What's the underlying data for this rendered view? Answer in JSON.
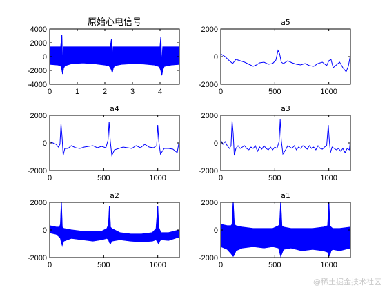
{
  "figure": {
    "watermark": "@稀土掘金技术社区"
  },
  "colors": {
    "line": "#0000ff",
    "axes": "#000000",
    "background": "#ffffff"
  },
  "chart_data": [
    {
      "id": "original",
      "type": "line",
      "title": "原始心电信号",
      "xlim": [
        0,
        4.7
      ],
      "ylim": [
        -4000,
        4000
      ],
      "xticks": [
        0,
        1,
        2,
        3,
        4
      ],
      "yticks": [
        -4000,
        -2000,
        0,
        2000,
        4000
      ],
      "grid": false,
      "series": [
        {
          "band": {
            "upper": 1400,
            "lower": -1300
          },
          "x": [
            0.0,
            0.3,
            0.4,
            0.44,
            0.47,
            0.5,
            0.55,
            0.8,
            1.2,
            1.6,
            2.0,
            2.15,
            2.2,
            2.24,
            2.27,
            2.3,
            2.35,
            2.6,
            3.0,
            3.4,
            3.8,
            3.95,
            4.0,
            4.03,
            4.06,
            4.1,
            4.15,
            4.4,
            4.7
          ],
          "upper": [
            1400,
            1400,
            1400,
            3100,
            -1700,
            1400,
            1400,
            1400,
            1400,
            1400,
            1400,
            1400,
            1400,
            2500,
            -900,
            1400,
            1400,
            1400,
            1400,
            1400,
            1400,
            1400,
            1400,
            2900,
            -1500,
            1400,
            1400,
            1400,
            1400
          ],
          "lower": [
            -1100,
            -1200,
            -1300,
            -1800,
            -2500,
            -1700,
            -1300,
            -1000,
            -900,
            -1000,
            -1200,
            -1300,
            -1600,
            -1900,
            -2300,
            -1700,
            -1300,
            -1100,
            -1000,
            -1050,
            -1200,
            -1400,
            -1700,
            -2000,
            -2700,
            -1900,
            -1400,
            -1200,
            -1100
          ]
        }
      ]
    },
    {
      "id": "a5",
      "type": "line",
      "title": "a5",
      "xlim": [
        0,
        1200
      ],
      "ylim": [
        -2000,
        2000
      ],
      "xticks": [
        0,
        500,
        1000
      ],
      "yticks": [
        -2000,
        0,
        2000
      ],
      "grid": false,
      "series": [
        {
          "x": [
            0,
            40,
            80,
            110,
            140,
            180,
            220,
            260,
            300,
            330,
            360,
            400,
            440,
            480,
            510,
            530,
            545,
            560,
            580,
            620,
            660,
            700,
            740,
            780,
            820,
            860,
            900,
            940,
            980,
            1000,
            1020,
            1040,
            1070,
            1100,
            1130,
            1160,
            1180,
            1200
          ],
          "values": [
            200,
            0,
            -300,
            -500,
            -200,
            -300,
            -400,
            -550,
            -700,
            -600,
            -450,
            -400,
            -550,
            -500,
            -250,
            450,
            200,
            -400,
            -500,
            -300,
            -450,
            -550,
            -600,
            -500,
            -650,
            -700,
            -500,
            -400,
            -650,
            -300,
            -200,
            -800,
            -600,
            -400,
            -800,
            -1100,
            -700,
            100
          ]
        }
      ]
    },
    {
      "id": "a4",
      "type": "line",
      "title": "a4",
      "xlim": [
        0,
        1200
      ],
      "ylim": [
        -2000,
        2000
      ],
      "xticks": [
        0,
        500,
        1000
      ],
      "yticks": [
        -2000,
        0,
        2000
      ],
      "grid": false,
      "series": [
        {
          "x": [
            0,
            30,
            60,
            80,
            95,
            105,
            115,
            125,
            140,
            170,
            200,
            240,
            280,
            320,
            360,
            400,
            440,
            480,
            520,
            540,
            550,
            560,
            575,
            600,
            640,
            680,
            720,
            760,
            800,
            840,
            880,
            920,
            960,
            990,
            1000,
            1010,
            1025,
            1060,
            1100,
            1140,
            1180,
            1200
          ],
          "values": [
            100,
            0,
            -100,
            -300,
            -100,
            1400,
            400,
            -900,
            -400,
            -400,
            -200,
            -350,
            -400,
            -300,
            -250,
            -200,
            -350,
            -250,
            -350,
            200,
            1550,
            200,
            -900,
            -500,
            -400,
            -300,
            -350,
            -400,
            -200,
            -350,
            -100,
            -300,
            -350,
            -200,
            1300,
            100,
            -800,
            -400,
            -400,
            -450,
            -700,
            200
          ]
        }
      ]
    },
    {
      "id": "a3",
      "type": "line",
      "title": "a3",
      "xlim": [
        0,
        1200
      ],
      "ylim": [
        -2000,
        2000
      ],
      "xticks": [
        0,
        500,
        1000
      ],
      "yticks": [
        -2000,
        0,
        2000
      ],
      "grid": false,
      "series": [
        {
          "x": [
            0,
            20,
            40,
            60,
            80,
            95,
            105,
            115,
            125,
            140,
            160,
            180,
            200,
            220,
            240,
            260,
            280,
            300,
            320,
            340,
            360,
            380,
            400,
            420,
            440,
            460,
            480,
            500,
            520,
            540,
            550,
            560,
            575,
            600,
            620,
            640,
            660,
            680,
            700,
            720,
            740,
            760,
            780,
            800,
            820,
            840,
            860,
            880,
            900,
            920,
            940,
            960,
            980,
            995,
            1005,
            1015,
            1030,
            1050,
            1070,
            1090,
            1110,
            1130,
            1150,
            1170,
            1190,
            1200
          ],
          "values": [
            200,
            -100,
            100,
            -200,
            -400,
            -200,
            1600,
            700,
            -900,
            -400,
            -200,
            -400,
            -300,
            -200,
            -400,
            -500,
            -300,
            -400,
            -200,
            -600,
            -300,
            -450,
            -200,
            -400,
            -500,
            -300,
            -500,
            -300,
            -400,
            100,
            1700,
            200,
            -800,
            -500,
            -200,
            -300,
            -400,
            -200,
            -500,
            -300,
            -400,
            -200,
            -300,
            -450,
            -200,
            -400,
            -300,
            -500,
            -200,
            -400,
            -450,
            -300,
            -200,
            1300,
            100,
            -700,
            -300,
            -400,
            -500,
            -400,
            -600,
            -400,
            -700,
            -400,
            -500,
            200
          ]
        }
      ]
    },
    {
      "id": "a2",
      "type": "line",
      "title": "a2",
      "xlim": [
        0,
        1200
      ],
      "ylim": [
        -2000,
        2000
      ],
      "xticks": [
        0,
        500,
        1000
      ],
      "yticks": [
        -2000,
        0,
        2000
      ],
      "grid": false,
      "series": [
        {
          "band": {
            "upper": 400,
            "lower": -900
          },
          "x": [
            0,
            60,
            90,
            100,
            108,
            116,
            130,
            200,
            300,
            400,
            480,
            530,
            545,
            553,
            562,
            575,
            650,
            750,
            850,
            950,
            985,
            1000,
            1008,
            1018,
            1030,
            1100,
            1200
          ],
          "upper": [
            300,
            200,
            200,
            400,
            2000,
            200,
            100,
            0,
            -100,
            -100,
            -100,
            100,
            400,
            1700,
            200,
            100,
            -200,
            -300,
            -300,
            -200,
            100,
            1700,
            200,
            0,
            -200,
            -200,
            0
          ],
          "lower": [
            -200,
            -300,
            -500,
            -600,
            -900,
            -1100,
            -800,
            -600,
            -700,
            -800,
            -700,
            -600,
            -700,
            -900,
            -1000,
            -800,
            -700,
            -800,
            -850,
            -800,
            -700,
            -900,
            -1000,
            -800,
            -700,
            -750,
            -500
          ]
        }
      ]
    },
    {
      "id": "a1",
      "type": "line",
      "title": "a1",
      "xlim": [
        0,
        1200
      ],
      "ylim": [
        -2000,
        2000
      ],
      "xticks": [
        0,
        500,
        1000
      ],
      "yticks": [
        -2000,
        0,
        2000
      ],
      "grid": false,
      "series": [
        {
          "band": {
            "upper": 400,
            "lower": -1800
          },
          "x": [
            0,
            60,
            95,
            105,
            115,
            125,
            140,
            200,
            300,
            400,
            480,
            535,
            545,
            555,
            565,
            580,
            650,
            750,
            850,
            950,
            990,
            1000,
            1010,
            1020,
            1035,
            1100,
            1200
          ],
          "upper": [
            400,
            300,
            300,
            400,
            2000,
            400,
            300,
            200,
            100,
            100,
            100,
            300,
            400,
            2000,
            300,
            200,
            100,
            100,
            100,
            200,
            300,
            2000,
            300,
            200,
            100,
            100,
            200
          ],
          "lower": [
            -1200,
            -1400,
            -1700,
            -1800,
            -1900,
            -1800,
            -1500,
            -1300,
            -1200,
            -1300,
            -1200,
            -1300,
            -1600,
            -1900,
            -1700,
            -1400,
            -1300,
            -1500,
            -1400,
            -1500,
            -1600,
            -1900,
            -1800,
            -1500,
            -1400,
            -1500,
            -1300
          ]
        }
      ]
    }
  ]
}
